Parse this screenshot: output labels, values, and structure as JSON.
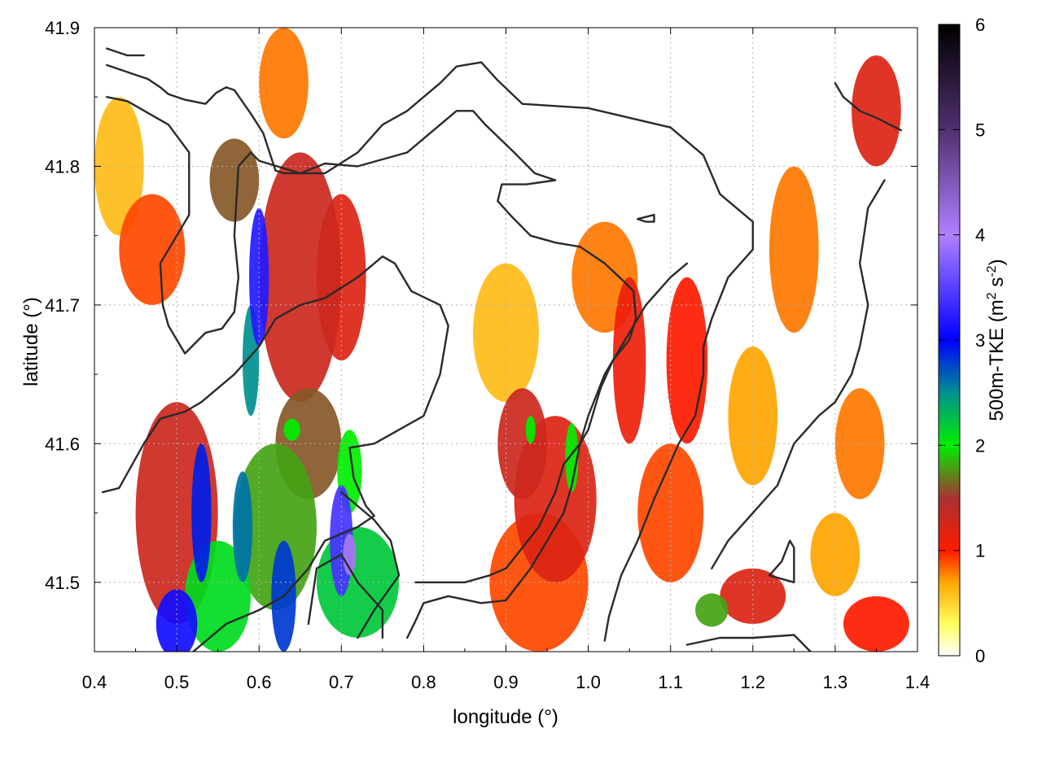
{
  "chart_data": {
    "type": "heatmap",
    "title": "",
    "xlabel": "longitude (°)",
    "ylabel": "latitude (°)",
    "xlim": [
      0.4,
      1.4
    ],
    "ylim": [
      41.45,
      41.9
    ],
    "x_ticks": [
      0.4,
      0.5,
      0.6,
      0.7,
      0.8,
      0.9,
      1.0,
      1.1,
      1.2,
      1.3,
      1.4
    ],
    "y_ticks": [
      41.5,
      41.6,
      41.7,
      41.8,
      41.9
    ],
    "x_tick_labels": [
      "0.4",
      "0.5",
      "0.6",
      "0.7",
      "0.8",
      "0.9",
      "1.0",
      "1.1",
      "1.2",
      "1.3",
      "1.4"
    ],
    "y_tick_labels": [
      "41.5",
      "41.6",
      "41.7",
      "41.8",
      "41.9"
    ],
    "grid": true,
    "colorbar": {
      "label_parts": [
        "500m-TKE (m",
        "2",
        " s",
        "-2",
        ")"
      ],
      "range": [
        0,
        6
      ],
      "ticks": [
        0,
        1,
        2,
        3,
        4,
        5,
        6
      ],
      "tick_labels": [
        "0",
        "1",
        "2",
        "3",
        "4",
        "5",
        "6"
      ],
      "colormap": [
        {
          "v": 0.0,
          "color": "#ffffff"
        },
        {
          "v": 0.3,
          "color": "#ffff60"
        },
        {
          "v": 0.7,
          "color": "#ffa500"
        },
        {
          "v": 1.0,
          "color": "#ff1a00"
        },
        {
          "v": 1.5,
          "color": "#a83232"
        },
        {
          "v": 2.0,
          "color": "#00ee00"
        },
        {
          "v": 2.5,
          "color": "#009090"
        },
        {
          "v": 3.0,
          "color": "#0000ff"
        },
        {
          "v": 4.0,
          "color": "#b080ff"
        },
        {
          "v": 5.0,
          "color": "#503070"
        },
        {
          "v": 6.0,
          "color": "#000000"
        }
      ]
    },
    "field_features": [
      {
        "lon": 0.6,
        "lat": 41.72,
        "value": 3.2,
        "rx": 0.012,
        "ry": 0.05
      },
      {
        "lon": 0.59,
        "lat": 41.66,
        "value": 2.5,
        "rx": 0.01,
        "ry": 0.04
      },
      {
        "lon": 0.57,
        "lat": 41.79,
        "value": 1.6,
        "rx": 0.03,
        "ry": 0.03
      },
      {
        "lon": 0.65,
        "lat": 41.72,
        "value": 1.3,
        "rx": 0.05,
        "ry": 0.09
      },
      {
        "lon": 0.7,
        "lat": 41.72,
        "value": 1.2,
        "rx": 0.03,
        "ry": 0.06
      },
      {
        "lon": 0.7,
        "lat": 41.53,
        "value": 3.4,
        "rx": 0.014,
        "ry": 0.04
      },
      {
        "lon": 0.71,
        "lat": 41.52,
        "value": 4.1,
        "rx": 0.008,
        "ry": 0.015
      },
      {
        "lon": 0.72,
        "lat": 41.5,
        "value": 2.2,
        "rx": 0.05,
        "ry": 0.04
      },
      {
        "lon": 0.53,
        "lat": 41.55,
        "value": 2.9,
        "rx": 0.012,
        "ry": 0.05
      },
      {
        "lon": 0.58,
        "lat": 41.54,
        "value": 2.6,
        "rx": 0.012,
        "ry": 0.04
      },
      {
        "lon": 0.63,
        "lat": 41.49,
        "value": 2.8,
        "rx": 0.015,
        "ry": 0.04
      },
      {
        "lon": 0.5,
        "lat": 41.47,
        "value": 3.1,
        "rx": 0.025,
        "ry": 0.025
      },
      {
        "lon": 0.55,
        "lat": 41.49,
        "value": 2.1,
        "rx": 0.04,
        "ry": 0.04
      },
      {
        "lon": 0.62,
        "lat": 41.54,
        "value": 1.8,
        "rx": 0.05,
        "ry": 0.06
      },
      {
        "lon": 0.5,
        "lat": 41.55,
        "value": 1.3,
        "rx": 0.05,
        "ry": 0.08
      },
      {
        "lon": 0.66,
        "lat": 41.6,
        "value": 1.6,
        "rx": 0.04,
        "ry": 0.04
      },
      {
        "lon": 0.64,
        "lat": 41.61,
        "value": 2.0,
        "rx": 0.01,
        "ry": 0.008
      },
      {
        "lon": 0.71,
        "lat": 41.58,
        "value": 2.0,
        "rx": 0.015,
        "ry": 0.03
      },
      {
        "lon": 0.47,
        "lat": 41.74,
        "value": 0.9,
        "rx": 0.04,
        "ry": 0.04
      },
      {
        "lon": 0.43,
        "lat": 41.8,
        "value": 0.6,
        "rx": 0.03,
        "ry": 0.05
      },
      {
        "lon": 0.63,
        "lat": 41.86,
        "value": 0.8,
        "rx": 0.03,
        "ry": 0.04
      },
      {
        "lon": 0.92,
        "lat": 41.6,
        "value": 1.3,
        "rx": 0.03,
        "ry": 0.04
      },
      {
        "lon": 0.93,
        "lat": 41.61,
        "value": 2.0,
        "rx": 0.006,
        "ry": 0.01
      },
      {
        "lon": 0.98,
        "lat": 41.59,
        "value": 2.0,
        "rx": 0.008,
        "ry": 0.025
      },
      {
        "lon": 0.96,
        "lat": 41.56,
        "value": 1.2,
        "rx": 0.05,
        "ry": 0.06
      },
      {
        "lon": 0.94,
        "lat": 41.5,
        "value": 0.9,
        "rx": 0.06,
        "ry": 0.05
      },
      {
        "lon": 1.05,
        "lat": 41.66,
        "value": 1.1,
        "rx": 0.02,
        "ry": 0.06
      },
      {
        "lon": 1.02,
        "lat": 41.72,
        "value": 0.8,
        "rx": 0.04,
        "ry": 0.04
      },
      {
        "lon": 1.12,
        "lat": 41.66,
        "value": 1.0,
        "rx": 0.025,
        "ry": 0.06
      },
      {
        "lon": 1.1,
        "lat": 41.55,
        "value": 0.9,
        "rx": 0.04,
        "ry": 0.05
      },
      {
        "lon": 1.15,
        "lat": 41.48,
        "value": 1.8,
        "rx": 0.02,
        "ry": 0.012
      },
      {
        "lon": 1.2,
        "lat": 41.49,
        "value": 1.2,
        "rx": 0.04,
        "ry": 0.02
      },
      {
        "lon": 1.25,
        "lat": 41.74,
        "value": 0.8,
        "rx": 0.03,
        "ry": 0.06
      },
      {
        "lon": 1.35,
        "lat": 41.84,
        "value": 1.2,
        "rx": 0.03,
        "ry": 0.04
      },
      {
        "lon": 1.33,
        "lat": 41.6,
        "value": 0.8,
        "rx": 0.03,
        "ry": 0.04
      },
      {
        "lon": 1.35,
        "lat": 41.47,
        "value": 1.0,
        "rx": 0.04,
        "ry": 0.02
      },
      {
        "lon": 1.3,
        "lat": 41.52,
        "value": 0.7,
        "rx": 0.03,
        "ry": 0.03
      },
      {
        "lon": 0.9,
        "lat": 41.68,
        "value": 0.6,
        "rx": 0.04,
        "ry": 0.05
      },
      {
        "lon": 1.2,
        "lat": 41.62,
        "value": 0.7,
        "rx": 0.03,
        "ry": 0.05
      }
    ],
    "contours": [
      [
        [
          0.415,
          41.873
        ],
        [
          0.465,
          41.863
        ],
        [
          0.48,
          41.857
        ],
        [
          0.49,
          41.852
        ],
        [
          0.51,
          41.848
        ],
        [
          0.535,
          41.845
        ],
        [
          0.548,
          41.853
        ],
        [
          0.56,
          41.857
        ],
        [
          0.57,
          41.855
        ],
        [
          0.59,
          41.838
        ],
        [
          0.605,
          41.824
        ],
        [
          0.62,
          41.797
        ],
        [
          0.63,
          41.795
        ],
        [
          0.68,
          41.795
        ],
        [
          0.72,
          41.81
        ],
        [
          0.75,
          41.83
        ],
        [
          0.78,
          41.84
        ],
        [
          0.8,
          41.85
        ],
        [
          0.82,
          41.86
        ],
        [
          0.84,
          41.872
        ],
        [
          0.87,
          41.875
        ],
        [
          0.89,
          41.862
        ],
        [
          0.92,
          41.845
        ],
        [
          1.0,
          41.842
        ],
        [
          1.05,
          41.835
        ],
        [
          1.1,
          41.828
        ],
        [
          1.14,
          41.808
        ],
        [
          1.16,
          41.78
        ],
        [
          1.18,
          41.77
        ],
        [
          1.2,
          41.76
        ],
        [
          1.2,
          41.74
        ],
        [
          1.17,
          41.72
        ],
        [
          1.15,
          41.69
        ],
        [
          1.14,
          41.67
        ],
        [
          1.14,
          41.65
        ],
        [
          1.13,
          41.62
        ],
        [
          1.11,
          41.6
        ],
        [
          1.08,
          41.56
        ],
        [
          1.06,
          41.53
        ],
        [
          1.04,
          41.505
        ],
        [
          1.025,
          41.475
        ],
        [
          1.02,
          41.458
        ]
      ],
      [
        [
          0.415,
          41.85
        ],
        [
          0.44,
          41.847
        ],
        [
          0.49,
          41.83
        ],
        [
          0.515,
          41.81
        ],
        [
          0.515,
          41.765
        ],
        [
          0.5,
          41.75
        ],
        [
          0.48,
          41.73
        ],
        [
          0.483,
          41.7
        ],
        [
          0.49,
          41.685
        ],
        [
          0.51,
          41.665
        ],
        [
          0.535,
          41.68
        ],
        [
          0.555,
          41.683
        ],
        [
          0.57,
          41.695
        ],
        [
          0.575,
          41.72
        ],
        [
          0.57,
          41.75
        ],
        [
          0.575,
          41.8
        ],
        [
          0.59,
          41.81
        ],
        [
          0.6,
          41.804
        ],
        [
          0.65,
          41.795
        ],
        [
          0.68,
          41.802
        ],
        [
          0.72,
          41.8
        ],
        [
          0.78,
          41.81
        ],
        [
          0.82,
          41.83
        ],
        [
          0.84,
          41.84
        ],
        [
          0.86,
          41.84
        ],
        [
          0.875,
          41.83
        ],
        [
          0.91,
          41.81
        ],
        [
          0.935,
          41.795
        ],
        [
          0.96,
          41.79
        ],
        [
          0.925,
          41.787
        ],
        [
          0.895,
          41.787
        ],
        [
          0.89,
          41.775
        ],
        [
          0.905,
          41.765
        ],
        [
          0.93,
          41.75
        ],
        [
          0.96,
          41.745
        ],
        [
          0.99,
          41.742
        ],
        [
          1.02,
          41.73
        ],
        [
          1.045,
          41.716
        ],
        [
          1.055,
          41.71
        ],
        [
          1.058,
          41.69
        ],
        [
          1.05,
          41.675
        ],
        [
          1.03,
          41.66
        ],
        [
          1.015,
          41.64
        ],
        [
          1.0,
          41.61
        ],
        [
          0.99,
          41.6
        ],
        [
          0.97,
          41.585
        ],
        [
          0.96,
          41.565
        ],
        [
          0.94,
          41.54
        ],
        [
          0.92,
          41.525
        ],
        [
          0.9,
          41.51
        ],
        [
          0.88,
          41.505
        ],
        [
          0.85,
          41.5
        ],
        [
          0.82,
          41.5
        ],
        [
          0.79,
          41.5
        ]
      ],
      [
        [
          0.41,
          41.565
        ],
        [
          0.43,
          41.568
        ],
        [
          0.46,
          41.6
        ],
        [
          0.48,
          41.618
        ],
        [
          0.51,
          41.623
        ],
        [
          0.53,
          41.63
        ],
        [
          0.57,
          41.65
        ],
        [
          0.6,
          41.67
        ],
        [
          0.62,
          41.69
        ],
        [
          0.65,
          41.7
        ],
        [
          0.68,
          41.705
        ],
        [
          0.72,
          41.72
        ],
        [
          0.74,
          41.73
        ],
        [
          0.75,
          41.735
        ],
        [
          0.765,
          41.73
        ],
        [
          0.785,
          41.71
        ],
        [
          0.82,
          41.7
        ],
        [
          0.83,
          41.685
        ],
        [
          0.82,
          41.65
        ],
        [
          0.8,
          41.62
        ],
        [
          0.77,
          41.61
        ],
        [
          0.74,
          41.6
        ],
        [
          0.71,
          41.597
        ],
        [
          0.715,
          41.575
        ],
        [
          0.73,
          41.555
        ],
        [
          0.74,
          41.548
        ],
        [
          0.72,
          41.54
        ],
        [
          0.7,
          41.535
        ],
        [
          0.68,
          41.53
        ],
        [
          0.66,
          41.51
        ],
        [
          0.63,
          41.49
        ],
        [
          0.6,
          41.48
        ],
        [
          0.56,
          41.47
        ],
        [
          0.52,
          41.45
        ]
      ],
      [
        [
          0.78,
          41.46
        ],
        [
          0.79,
          41.472
        ],
        [
          0.8,
          41.485
        ],
        [
          0.83,
          41.49
        ],
        [
          0.87,
          41.485
        ],
        [
          0.9,
          41.487
        ],
        [
          0.93,
          41.51
        ],
        [
          0.95,
          41.53
        ],
        [
          0.97,
          41.55
        ],
        [
          0.98,
          41.57
        ],
        [
          0.99,
          41.6
        ],
        [
          1.0,
          41.62
        ],
        [
          1.02,
          41.65
        ],
        [
          1.04,
          41.67
        ],
        [
          1.07,
          41.7
        ],
        [
          1.1,
          41.72
        ],
        [
          1.12,
          41.73
        ]
      ],
      [
        [
          0.415,
          41.885
        ],
        [
          0.44,
          41.88
        ],
        [
          0.46,
          41.88
        ]
      ],
      [
        [
          1.06,
          41.762
        ],
        [
          1.08,
          41.765
        ],
        [
          1.08,
          41.76
        ],
        [
          1.07,
          41.76
        ],
        [
          1.06,
          41.762
        ]
      ],
      [
        [
          1.22,
          41.505
        ],
        [
          1.25,
          41.5
        ],
        [
          1.25,
          41.525
        ],
        [
          1.245,
          41.53
        ],
        [
          1.235,
          41.515
        ],
        [
          1.22,
          41.505
        ]
      ],
      [
        [
          1.3,
          41.86
        ],
        [
          1.31,
          41.85
        ],
        [
          1.33,
          41.84
        ],
        [
          1.35,
          41.835
        ],
        [
          1.38,
          41.826
        ]
      ],
      [
        [
          1.36,
          41.79
        ],
        [
          1.34,
          41.77
        ],
        [
          1.33,
          41.73
        ],
        [
          1.34,
          41.7
        ],
        [
          1.33,
          41.67
        ],
        [
          1.32,
          41.65
        ],
        [
          1.3,
          41.63
        ],
        [
          1.28,
          41.62
        ],
        [
          1.25,
          41.6
        ],
        [
          1.23,
          41.57
        ],
        [
          1.2,
          41.55
        ],
        [
          1.17,
          41.53
        ],
        [
          1.15,
          41.51
        ]
      ],
      [
        [
          0.7,
          41.565
        ],
        [
          0.72,
          41.555
        ],
        [
          0.74,
          41.545
        ],
        [
          0.76,
          41.53
        ],
        [
          0.77,
          41.505
        ],
        [
          0.74,
          41.48
        ],
        [
          0.72,
          41.46
        ]
      ],
      [
        [
          1.12,
          41.455
        ],
        [
          1.16,
          41.46
        ],
        [
          1.2,
          41.46
        ],
        [
          1.25,
          41.462
        ],
        [
          1.27,
          41.45
        ]
      ],
      [
        [
          0.75,
          41.46
        ],
        [
          0.75,
          41.48
        ],
        [
          0.72,
          41.5
        ],
        [
          0.7,
          41.52
        ],
        [
          0.67,
          41.51
        ],
        [
          0.66,
          41.47
        ]
      ]
    ]
  }
}
